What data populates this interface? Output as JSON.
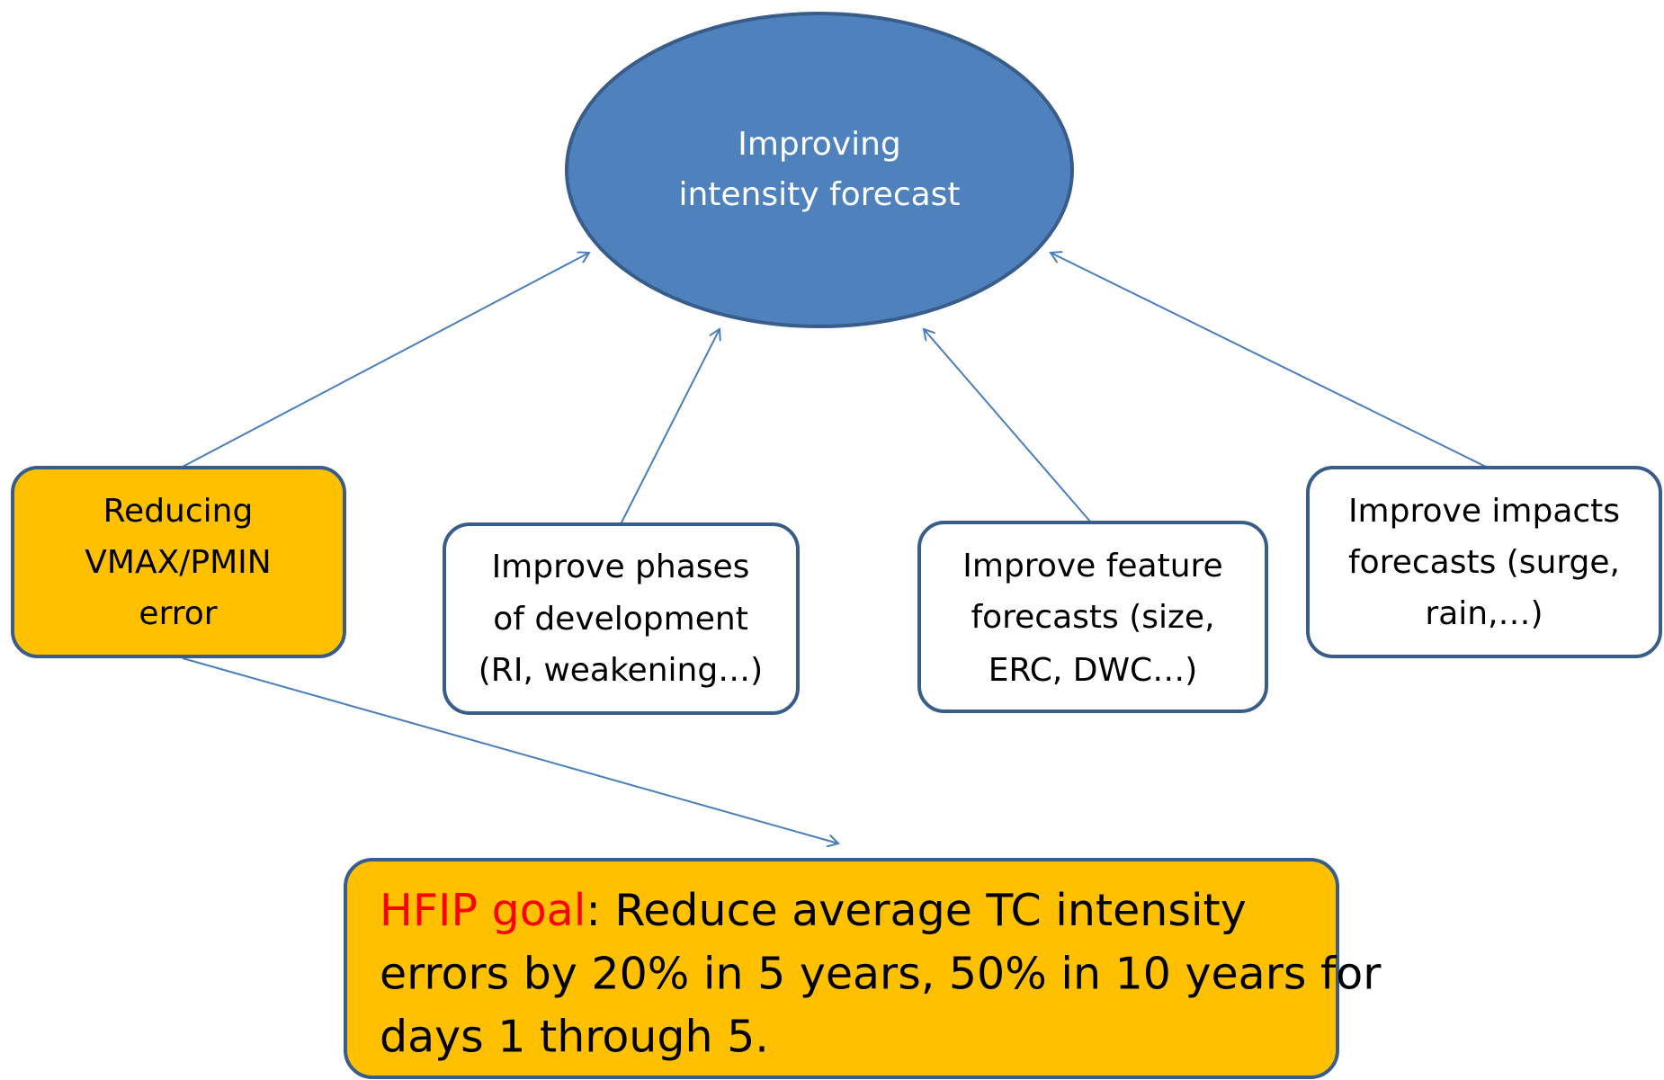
{
  "center": {
    "lines": [
      "Improving",
      "intensity forecast"
    ]
  },
  "nodes": [
    {
      "lines": [
        "Reducing",
        "VMAX/PMIN",
        "error"
      ]
    },
    {
      "lines": [
        "Improve phases",
        "of development",
        "(RI, weakening…)"
      ]
    },
    {
      "lines": [
        "Improve feature",
        "forecasts (size,",
        "ERC, DWC…)"
      ]
    },
    {
      "lines": [
        "Improve impacts",
        "forecasts (surge,",
        "rain,…)"
      ]
    }
  ],
  "goal": {
    "label": "HFIP goal",
    "lines": [
      ": Reduce average TC intensity",
      "errors by 20% in 5 years, 50% in 10 years for",
      "days 1 through 5."
    ]
  }
}
